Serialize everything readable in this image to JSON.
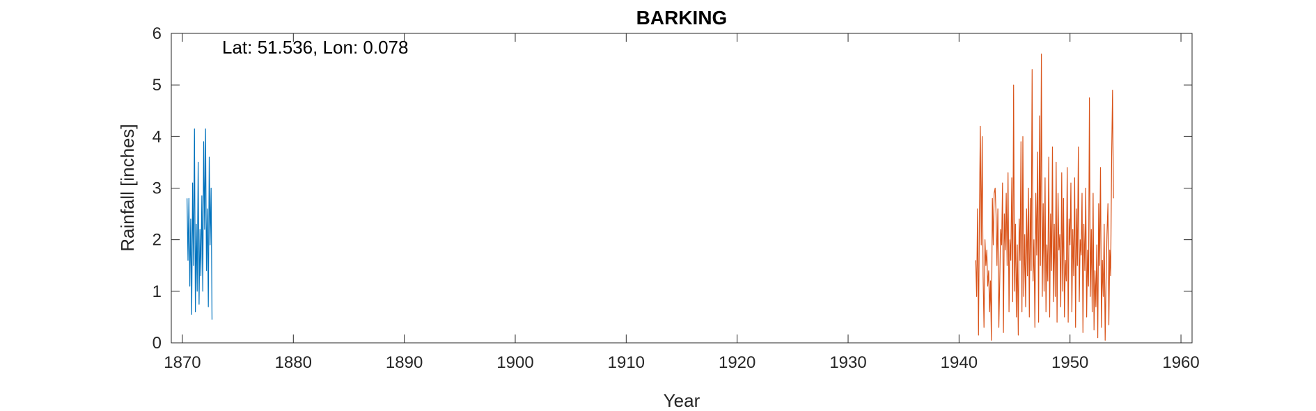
{
  "chart_data": {
    "type": "line",
    "title": "BARKING",
    "xlabel": "Year",
    "ylabel": "Rainfall [inches]",
    "annotation": "Lat: 51.536, Lon: 0.078",
    "xlim": [
      1869,
      1961
    ],
    "ylim": [
      0,
      6
    ],
    "xticks": [
      1870,
      1880,
      1890,
      1900,
      1910,
      1920,
      1930,
      1940,
      1950,
      1960
    ],
    "yticks": [
      0,
      1,
      2,
      3,
      4,
      5,
      6
    ],
    "grid": false,
    "colors": {
      "series1": "#0072BD",
      "series2": "#D95319",
      "axis": "#262626"
    },
    "series": [
      {
        "x_start": 1870.42,
        "x_step": 0.0833333,
        "values": [
          2.8,
          1.6,
          2.8,
          1.1,
          2.4,
          0.55,
          3.1,
          1.5,
          4.15,
          0.6,
          2.3,
          1.0,
          3.5,
          0.75,
          2.2,
          1.3,
          2.85,
          1.0,
          3.9,
          2.2,
          4.15,
          1.4,
          2.6,
          0.7,
          3.6,
          1.9,
          3.0,
          0.45
        ]
      },
      {
        "x_start": 1941.5,
        "x_step": 0.0833333,
        "values": [
          1.6,
          0.9,
          2.6,
          0.15,
          2.5,
          4.2,
          1.9,
          4.0,
          1.3,
          0.3,
          2.0,
          1.5,
          1.8,
          1.1,
          1.4,
          0.6,
          1.2,
          0.05,
          2.8,
          1.9,
          2.9,
          3.0,
          2.5,
          1.5,
          2.6,
          0.3,
          1.2,
          2.2,
          1.9,
          3.1,
          0.2,
          2.5,
          1.8,
          2.9,
          1.5,
          3.3,
          0.6,
          2.0,
          1.6,
          3.2,
          0.8,
          5.0,
          1.0,
          2.3,
          0.5,
          1.9,
          0.15,
          2.4,
          1.6,
          3.9,
          0.6,
          4.0,
          0.9,
          2.1,
          0.7,
          2.6,
          1.3,
          3.0,
          0.5,
          2.8,
          1.4,
          5.3,
          1.2,
          2.0,
          0.3,
          2.9,
          1.7,
          3.7,
          0.4,
          4.4,
          1.5,
          5.6,
          0.9,
          2.7,
          1.0,
          3.2,
          0.6,
          1.9,
          1.2,
          3.6,
          0.5,
          2.5,
          1.4,
          3.8,
          0.8,
          2.3,
          0.9,
          3.5,
          0.4,
          2.9,
          1.8,
          2.1,
          0.7,
          3.3,
          1.0,
          2.8,
          0.5,
          1.6,
          1.2,
          3.4,
          0.4,
          2.4,
          1.9,
          3.1,
          0.6,
          2.2,
          1.3,
          3.2,
          0.3,
          2.6,
          1.5,
          3.8,
          0.8,
          2.0,
          1.7,
          2.9,
          0.2,
          2.3,
          1.4,
          3.0,
          0.5,
          1.8,
          1.1,
          4.75,
          0.9,
          2.2,
          0.6,
          2.9,
          0.25,
          1.4,
          0.7,
          1.9,
          0.1,
          2.7,
          1.5,
          3.4,
          0.3,
          1.6,
          0.9,
          2.3,
          0.05,
          1.2,
          2.1,
          2.7,
          0.35,
          1.8,
          1.3,
          3.6,
          4.9,
          2.8
        ]
      }
    ]
  }
}
